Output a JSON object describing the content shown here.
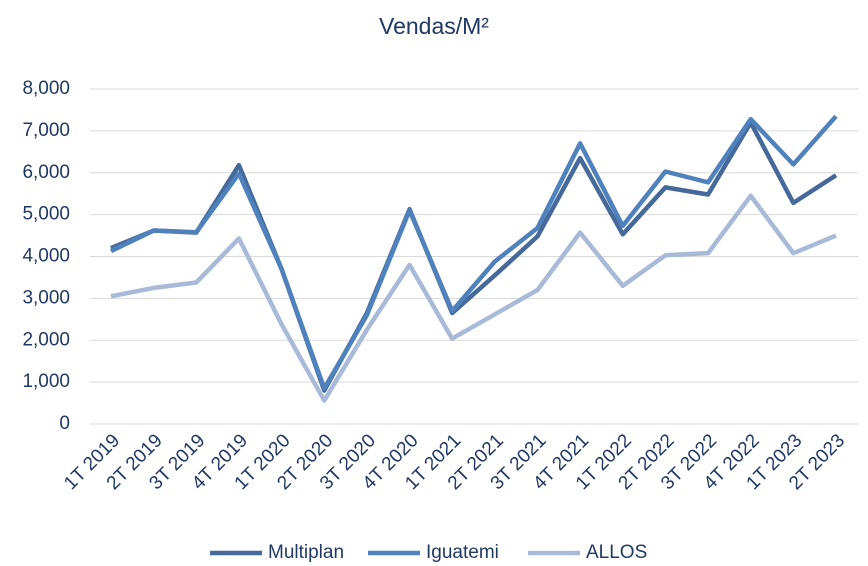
{
  "chart_data": {
    "type": "line",
    "title": "Vendas/M²",
    "categories": [
      "1T 2019",
      "2T 2019",
      "3T 2019",
      "4T 2019",
      "1T 2020",
      "2T 2020",
      "3T 2020",
      "4T 2020",
      "1T 2021",
      "2T 2021",
      "3T 2021",
      "4T 2021",
      "1T 2022",
      "2T 2022",
      "3T 2022",
      "4T 2022",
      "1T 2023",
      "2T 2023"
    ],
    "series": [
      {
        "name": "Multiplan",
        "color": "#44699a",
        "values": [
          4200,
          4620,
          4570,
          6180,
          3700,
          800,
          2650,
          5130,
          2650,
          3550,
          4480,
          6350,
          4530,
          5650,
          5480,
          7200,
          5280,
          5940
        ]
      },
      {
        "name": "Iguatemi",
        "color": "#4f81bd",
        "values": [
          4130,
          4620,
          4580,
          5980,
          3700,
          850,
          2600,
          5100,
          2700,
          3880,
          4680,
          6700,
          4730,
          6030,
          5770,
          7280,
          6200,
          7350
        ]
      },
      {
        "name": "ALLOS",
        "color": "#a9b9d8",
        "values": [
          3050,
          3250,
          3380,
          4430,
          2380,
          560,
          2250,
          3800,
          2040,
          2620,
          3200,
          4570,
          3300,
          4030,
          4080,
          5450,
          4080,
          4500
        ]
      }
    ],
    "ylim": [
      0,
      8000
    ],
    "yticks": [
      0,
      {
        "value": 1000,
        "label": "1,000"
      },
      {
        "value": 2000,
        "label": "2,000"
      },
      {
        "value": 3000,
        "label": "3,000"
      },
      {
        "value": 4000,
        "label": "4,000"
      },
      {
        "value": 5000,
        "label": "5,000"
      },
      {
        "value": 6000,
        "label": "6,000"
      },
      {
        "value": 7000,
        "label": "7,000"
      },
      {
        "value": 8000,
        "label": "8,000"
      }
    ],
    "grid": true,
    "legend": "bottom"
  }
}
